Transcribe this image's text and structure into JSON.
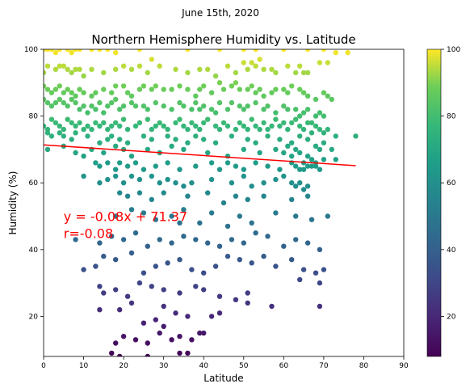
{
  "chart_data": {
    "type": "scatter",
    "suptitle": "June 15th, 2020",
    "title": "Northern Hemisphere Humidity vs. Latitude",
    "xlabel": "Latitude",
    "ylabel": "Humidity (%)",
    "xlim": [
      0,
      90
    ],
    "ylim": [
      8,
      100
    ],
    "xticks": [
      "0",
      "10",
      "20",
      "30",
      "40",
      "50",
      "60",
      "70",
      "80",
      "90"
    ],
    "yticks": [
      "20",
      "40",
      "60",
      "80",
      "100"
    ],
    "colorbar": {
      "ticks": [
        "20",
        "40",
        "60",
        "80",
        "100"
      ],
      "range": [
        8,
        100
      ],
      "colormap": "viridis"
    },
    "regression": {
      "slope": -0.08,
      "intercept": 71.37,
      "x_range": [
        0,
        78
      ],
      "color": "#ff0000"
    },
    "annotation": {
      "line1": "y = -0.08x + 71.37",
      "line2": "r=-0.08",
      "x": 5,
      "y": 50
    },
    "points": [
      [
        0,
        100
      ],
      [
        1,
        100
      ],
      [
        2,
        100
      ],
      [
        3,
        99
      ],
      [
        4,
        100
      ],
      [
        6,
        100
      ],
      [
        7,
        99
      ],
      [
        8,
        100
      ],
      [
        9,
        100
      ],
      [
        12,
        100
      ],
      [
        14,
        100
      ],
      [
        16,
        100
      ],
      [
        18,
        99
      ],
      [
        24,
        100
      ],
      [
        36,
        100
      ],
      [
        44,
        100
      ],
      [
        50,
        100
      ],
      [
        53,
        100
      ],
      [
        60,
        100
      ],
      [
        66,
        100
      ],
      [
        70,
        100
      ],
      [
        73,
        99
      ],
      [
        0,
        93
      ],
      [
        1,
        95
      ],
      [
        3,
        94
      ],
      [
        4,
        95
      ],
      [
        5,
        95
      ],
      [
        6,
        94
      ],
      [
        7,
        93
      ],
      [
        8,
        94
      ],
      [
        9,
        94
      ],
      [
        10,
        92
      ],
      [
        12,
        94
      ],
      [
        15,
        93
      ],
      [
        18,
        94
      ],
      [
        20,
        95
      ],
      [
        22,
        94
      ],
      [
        24,
        95
      ],
      [
        26,
        93
      ],
      [
        27,
        97
      ],
      [
        29,
        95
      ],
      [
        33,
        94
      ],
      [
        36,
        93
      ],
      [
        39,
        94
      ],
      [
        41,
        94
      ],
      [
        43,
        92
      ],
      [
        46,
        95
      ],
      [
        48,
        93
      ],
      [
        50,
        96
      ],
      [
        51,
        94
      ],
      [
        52,
        96
      ],
      [
        53,
        95
      ],
      [
        54,
        97
      ],
      [
        55,
        94
      ],
      [
        57,
        94
      ],
      [
        58,
        93
      ],
      [
        61,
        95
      ],
      [
        63,
        93
      ],
      [
        64,
        95
      ],
      [
        65,
        93
      ],
      [
        66,
        93
      ],
      [
        69,
        96
      ],
      [
        71,
        96
      ],
      [
        76,
        99
      ],
      [
        0,
        89
      ],
      [
        1,
        88
      ],
      [
        2,
        87
      ],
      [
        3,
        88
      ],
      [
        4,
        89
      ],
      [
        5,
        87
      ],
      [
        6,
        88
      ],
      [
        7,
        87
      ],
      [
        8,
        86
      ],
      [
        9,
        88
      ],
      [
        10,
        87
      ],
      [
        12,
        86
      ],
      [
        13,
        87
      ],
      [
        15,
        88
      ],
      [
        17,
        87
      ],
      [
        18,
        89
      ],
      [
        20,
        89
      ],
      [
        21,
        87
      ],
      [
        22,
        86
      ],
      [
        24,
        88
      ],
      [
        25,
        89
      ],
      [
        27,
        88
      ],
      [
        28,
        89
      ],
      [
        30,
        88
      ],
      [
        32,
        88
      ],
      [
        34,
        89
      ],
      [
        36,
        88
      ],
      [
        38,
        86
      ],
      [
        39,
        88
      ],
      [
        40,
        89
      ],
      [
        42,
        87
      ],
      [
        44,
        90
      ],
      [
        45,
        88
      ],
      [
        47,
        89
      ],
      [
        48,
        90
      ],
      [
        49,
        88
      ],
      [
        51,
        88
      ],
      [
        52,
        89
      ],
      [
        53,
        87
      ],
      [
        54,
        88
      ],
      [
        55,
        86
      ],
      [
        57,
        87
      ],
      [
        58,
        88
      ],
      [
        60,
        88
      ],
      [
        61,
        87
      ],
      [
        62,
        89
      ],
      [
        64,
        88
      ],
      [
        65,
        87
      ],
      [
        66,
        86
      ],
      [
        68,
        85
      ],
      [
        70,
        87
      ],
      [
        71,
        86
      ],
      [
        72,
        85
      ],
      [
        0,
        85
      ],
      [
        1,
        84
      ],
      [
        2,
        83
      ],
      [
        3,
        84
      ],
      [
        4,
        85
      ],
      [
        5,
        84
      ],
      [
        6,
        83
      ],
      [
        7,
        85
      ],
      [
        8,
        84
      ],
      [
        9,
        82
      ],
      [
        10,
        83
      ],
      [
        11,
        81
      ],
      [
        12,
        83
      ],
      [
        13,
        82
      ],
      [
        14,
        84
      ],
      [
        15,
        81
      ],
      [
        16,
        83
      ],
      [
        17,
        84
      ],
      [
        18,
        85
      ],
      [
        19,
        82
      ],
      [
        20,
        83
      ],
      [
        22,
        84
      ],
      [
        23,
        83
      ],
      [
        25,
        83
      ],
      [
        26,
        82
      ],
      [
        28,
        84
      ],
      [
        30,
        83
      ],
      [
        32,
        82
      ],
      [
        34,
        84
      ],
      [
        35,
        83
      ],
      [
        37,
        82
      ],
      [
        38,
        84
      ],
      [
        39,
        82
      ],
      [
        40,
        83
      ],
      [
        42,
        82
      ],
      [
        43,
        81
      ],
      [
        44,
        84
      ],
      [
        46,
        82
      ],
      [
        47,
        84
      ],
      [
        49,
        83
      ],
      [
        50,
        82
      ],
      [
        51,
        83
      ],
      [
        53,
        84
      ],
      [
        55,
        82
      ],
      [
        56,
        83
      ],
      [
        58,
        81
      ],
      [
        60,
        83
      ],
      [
        61,
        82
      ],
      [
        63,
        82
      ],
      [
        64,
        80
      ],
      [
        65,
        81
      ],
      [
        66,
        82
      ],
      [
        67,
        78
      ],
      [
        68,
        80
      ],
      [
        69,
        81
      ],
      [
        70,
        80
      ],
      [
        0,
        77
      ],
      [
        1,
        76
      ],
      [
        2,
        79
      ],
      [
        3,
        78
      ],
      [
        4,
        77
      ],
      [
        5,
        76
      ],
      [
        6,
        79
      ],
      [
        7,
        78
      ],
      [
        8,
        77
      ],
      [
        9,
        78
      ],
      [
        10,
        76
      ],
      [
        11,
        77
      ],
      [
        12,
        76
      ],
      [
        13,
        78
      ],
      [
        14,
        77
      ],
      [
        15,
        78
      ],
      [
        16,
        76
      ],
      [
        17,
        77
      ],
      [
        18,
        78
      ],
      [
        19,
        77
      ],
      [
        20,
        79
      ],
      [
        21,
        76
      ],
      [
        23,
        77
      ],
      [
        24,
        78
      ],
      [
        26,
        79
      ],
      [
        27,
        76
      ],
      [
        28,
        77
      ],
      [
        29,
        78
      ],
      [
        30,
        77
      ],
      [
        31,
        76
      ],
      [
        33,
        78
      ],
      [
        34,
        79
      ],
      [
        35,
        77
      ],
      [
        36,
        76
      ],
      [
        37,
        78
      ],
      [
        38,
        77
      ],
      [
        39,
        76
      ],
      [
        40,
        78
      ],
      [
        41,
        79
      ],
      [
        43,
        77
      ],
      [
        44,
        76
      ],
      [
        45,
        78
      ],
      [
        46,
        77
      ],
      [
        48,
        76
      ],
      [
        49,
        78
      ],
      [
        50,
        77
      ],
      [
        51,
        76
      ],
      [
        52,
        79
      ],
      [
        53,
        77
      ],
      [
        54,
        76
      ],
      [
        55,
        78
      ],
      [
        56,
        76
      ],
      [
        57,
        77
      ],
      [
        58,
        79
      ],
      [
        59,
        77
      ],
      [
        60,
        78
      ],
      [
        61,
        76
      ],
      [
        62,
        78
      ],
      [
        63,
        79
      ],
      [
        64,
        77
      ],
      [
        65,
        76
      ],
      [
        66,
        78
      ],
      [
        67,
        75
      ],
      [
        68,
        77
      ],
      [
        69,
        76
      ],
      [
        70,
        75
      ],
      [
        71,
        76
      ],
      [
        73,
        74
      ],
      [
        78,
        74
      ],
      [
        1,
        75
      ],
      [
        2,
        74
      ],
      [
        4,
        75
      ],
      [
        5,
        74
      ],
      [
        7,
        73
      ],
      [
        8,
        75
      ],
      [
        11,
        74
      ],
      [
        14,
        72
      ],
      [
        16,
        73
      ],
      [
        17,
        74
      ],
      [
        19,
        73
      ],
      [
        21,
        72
      ],
      [
        25,
        74
      ],
      [
        27,
        73
      ],
      [
        31,
        74
      ],
      [
        33,
        73
      ],
      [
        36,
        72
      ],
      [
        38,
        74
      ],
      [
        40,
        73
      ],
      [
        43,
        72
      ],
      [
        47,
        74
      ],
      [
        51,
        73
      ],
      [
        53,
        72
      ],
      [
        56,
        74
      ],
      [
        59,
        73
      ],
      [
        62,
        72
      ],
      [
        64,
        74
      ],
      [
        66,
        73
      ],
      [
        68,
        71
      ],
      [
        70,
        72
      ],
      [
        72,
        70
      ],
      [
        1,
        70
      ],
      [
        5,
        71
      ],
      [
        8,
        69
      ],
      [
        10,
        68
      ],
      [
        12,
        70
      ],
      [
        15,
        69
      ],
      [
        18,
        71
      ],
      [
        20,
        70
      ],
      [
        22,
        68
      ],
      [
        26,
        70
      ],
      [
        29,
        69
      ],
      [
        32,
        71
      ],
      [
        35,
        70
      ],
      [
        41,
        69
      ],
      [
        46,
        68
      ],
      [
        50,
        70
      ],
      [
        54,
        69
      ],
      [
        58,
        70
      ],
      [
        60,
        69
      ],
      [
        61,
        71
      ],
      [
        62,
        68
      ],
      [
        63,
        70
      ],
      [
        64,
        69
      ],
      [
        65,
        66
      ],
      [
        66,
        68
      ],
      [
        67,
        67
      ],
      [
        68,
        66
      ],
      [
        69,
        70
      ],
      [
        70,
        67
      ],
      [
        73,
        67
      ],
      [
        13,
        66
      ],
      [
        14,
        65
      ],
      [
        16,
        66
      ],
      [
        18,
        64
      ],
      [
        19,
        66
      ],
      [
        21,
        65
      ],
      [
        23,
        66
      ],
      [
        25,
        64
      ],
      [
        28,
        65
      ],
      [
        31,
        66
      ],
      [
        34,
        64
      ],
      [
        38,
        65
      ],
      [
        42,
        66
      ],
      [
        44,
        64
      ],
      [
        46,
        66
      ],
      [
        48,
        65
      ],
      [
        50,
        64
      ],
      [
        53,
        66
      ],
      [
        56,
        65
      ],
      [
        59,
        64
      ],
      [
        62,
        66
      ],
      [
        63,
        65
      ],
      [
        64,
        64
      ],
      [
        65,
        64
      ],
      [
        66,
        65
      ],
      [
        67,
        65
      ],
      [
        68,
        65
      ],
      [
        69,
        64
      ],
      [
        10,
        62
      ],
      [
        14,
        60
      ],
      [
        16,
        61
      ],
      [
        18,
        62
      ],
      [
        20,
        60
      ],
      [
        22,
        62
      ],
      [
        24,
        61
      ],
      [
        27,
        62
      ],
      [
        29,
        60
      ],
      [
        31,
        61
      ],
      [
        33,
        60
      ],
      [
        35,
        59
      ],
      [
        37,
        60
      ],
      [
        42,
        61
      ],
      [
        47,
        60
      ],
      [
        50,
        62
      ],
      [
        52,
        59
      ],
      [
        55,
        60
      ],
      [
        58,
        61
      ],
      [
        60,
        62
      ],
      [
        62,
        60
      ],
      [
        63,
        59
      ],
      [
        64,
        60
      ],
      [
        65,
        58
      ],
      [
        66,
        59
      ],
      [
        19,
        57
      ],
      [
        21,
        56
      ],
      [
        24,
        57
      ],
      [
        27,
        55
      ],
      [
        30,
        57
      ],
      [
        36,
        56
      ],
      [
        41,
        57
      ],
      [
        45,
        54
      ],
      [
        48,
        56
      ],
      [
        51,
        55
      ],
      [
        55,
        56
      ],
      [
        62,
        55
      ],
      [
        66,
        56
      ],
      [
        18,
        50
      ],
      [
        22,
        52
      ],
      [
        25,
        51
      ],
      [
        28,
        49
      ],
      [
        32,
        50
      ],
      [
        35,
        52
      ],
      [
        39,
        48
      ],
      [
        42,
        51
      ],
      [
        46,
        47
      ],
      [
        49,
        50
      ],
      [
        52,
        48
      ],
      [
        58,
        51
      ],
      [
        63,
        50
      ],
      [
        67,
        49
      ],
      [
        71,
        50
      ],
      [
        34,
        48
      ],
      [
        8,
        43
      ],
      [
        14,
        42
      ],
      [
        17,
        44
      ],
      [
        20,
        43
      ],
      [
        23,
        45
      ],
      [
        26,
        41
      ],
      [
        29,
        43
      ],
      [
        32,
        42
      ],
      [
        35,
        44
      ],
      [
        38,
        43
      ],
      [
        41,
        42
      ],
      [
        44,
        41
      ],
      [
        47,
        43
      ],
      [
        50,
        42
      ],
      [
        53,
        45
      ],
      [
        56,
        44
      ],
      [
        60,
        41
      ],
      [
        63,
        43
      ],
      [
        66,
        42
      ],
      [
        69,
        40
      ],
      [
        10,
        34
      ],
      [
        13,
        35
      ],
      [
        15,
        38
      ],
      [
        18,
        37
      ],
      [
        22,
        39
      ],
      [
        25,
        33
      ],
      [
        28,
        35
      ],
      [
        31,
        36
      ],
      [
        34,
        37
      ],
      [
        37,
        34
      ],
      [
        40,
        33
      ],
      [
        43,
        35
      ],
      [
        46,
        38
      ],
      [
        49,
        37
      ],
      [
        52,
        36
      ],
      [
        55,
        38
      ],
      [
        58,
        35
      ],
      [
        62,
        37
      ],
      [
        65,
        34
      ],
      [
        68,
        33
      ],
      [
        70,
        34
      ],
      [
        14,
        29
      ],
      [
        15,
        27
      ],
      [
        18,
        28
      ],
      [
        21,
        26
      ],
      [
        24,
        30
      ],
      [
        27,
        29
      ],
      [
        30,
        28
      ],
      [
        34,
        27
      ],
      [
        38,
        29
      ],
      [
        40,
        28
      ],
      [
        44,
        26
      ],
      [
        48,
        25
      ],
      [
        51,
        27
      ],
      [
        57,
        23
      ],
      [
        64,
        31
      ],
      [
        69,
        30
      ],
      [
        69,
        23
      ],
      [
        14,
        22
      ],
      [
        19,
        22
      ],
      [
        22,
        24
      ],
      [
        25,
        18
      ],
      [
        28,
        19
      ],
      [
        30,
        23
      ],
      [
        33,
        21
      ],
      [
        36,
        20
      ],
      [
        39,
        15
      ],
      [
        42,
        20
      ],
      [
        44,
        21
      ],
      [
        51,
        24
      ],
      [
        20,
        14
      ],
      [
        23,
        13
      ],
      [
        26,
        12
      ],
      [
        30,
        17
      ],
      [
        32,
        13
      ],
      [
        34,
        14
      ],
      [
        37,
        13
      ],
      [
        40,
        15
      ],
      [
        18,
        12
      ],
      [
        19,
        8
      ],
      [
        26,
        8
      ],
      [
        34,
        9
      ],
      [
        36,
        9
      ],
      [
        17,
        9
      ],
      [
        29,
        15
      ]
    ]
  }
}
